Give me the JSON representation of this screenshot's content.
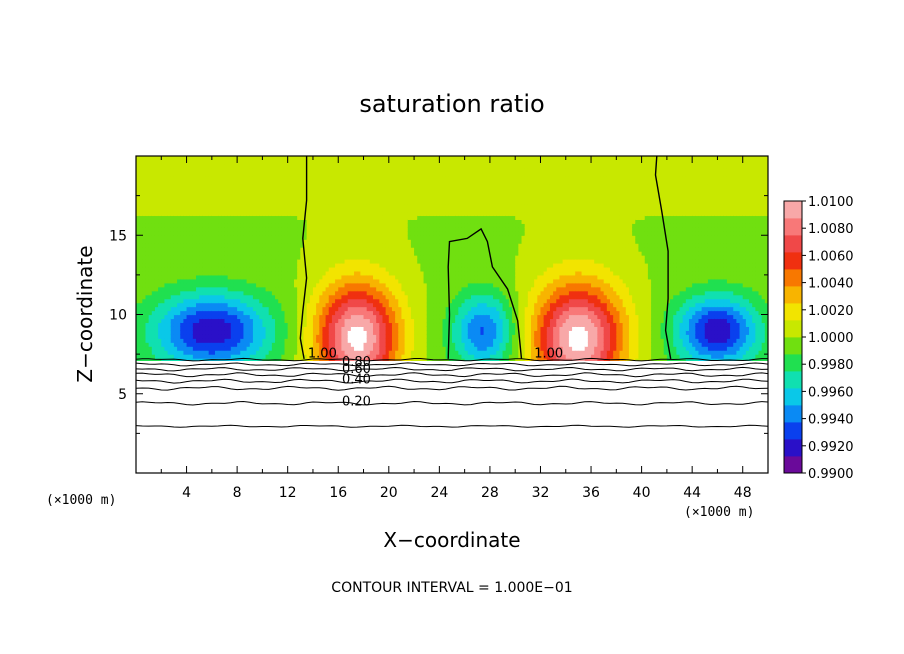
{
  "chart_data": {
    "type": "heatmap",
    "title": "saturation ratio",
    "xlabel": "X−coordinate",
    "ylabel": "Z−coordinate",
    "x_unit_left": "(×1000 m)",
    "x_unit_right": "(×1000 m)",
    "footer": "CONTOUR INTERVAL = 1.000E−01",
    "xlim": [
      0,
      50
    ],
    "ylim": [
      0,
      20
    ],
    "x_ticks": [
      4,
      8,
      12,
      16,
      20,
      24,
      28,
      32,
      36,
      40,
      44,
      48
    ],
    "y_ticks": [
      5,
      10,
      15
    ],
    "colorbar": {
      "min": 0.99,
      "max": 1.01,
      "tick_labels": [
        "0.9900",
        "0.9920",
        "0.9940",
        "0.9960",
        "0.9980",
        "1.0000",
        "1.0020",
        "1.0040",
        "1.0060",
        "1.0080",
        "1.0100"
      ],
      "colors": [
        "#6a0a9a",
        "#2a10c8",
        "#0a40ee",
        "#0a8af4",
        "#0ac8e8",
        "#10e0b0",
        "#20e050",
        "#70e010",
        "#c8e800",
        "#f2e400",
        "#f8b400",
        "#f87800",
        "#f03010",
        "#f04848",
        "#f87878",
        "#f8a8a8"
      ]
    },
    "contour_labels": [
      "1.00",
      "0.80",
      "0.60",
      "0.40",
      "0.20",
      "1.00"
    ]
  }
}
